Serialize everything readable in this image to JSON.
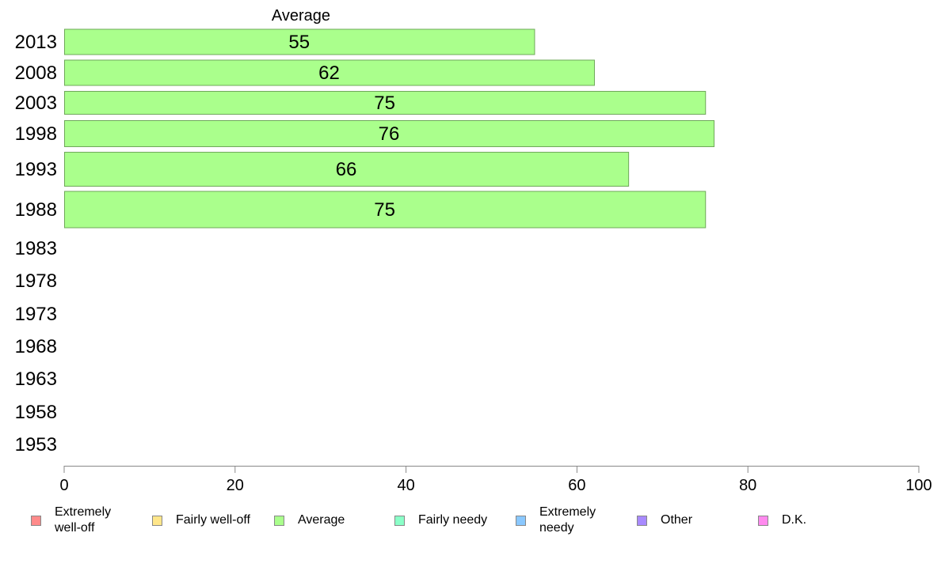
{
  "chart_data": {
    "type": "bar",
    "orientation": "horizontal",
    "title": "Average",
    "categories": [
      "2013",
      "2008",
      "2003",
      "1998",
      "1993",
      "1988",
      "1983",
      "1978",
      "1973",
      "1968",
      "1963",
      "1958",
      "1953"
    ],
    "series": [
      {
        "name": "Average",
        "values": [
          55,
          62,
          75,
          76,
          66,
          75,
          null,
          null,
          null,
          null,
          null,
          null,
          null
        ],
        "color": "#aaff8c"
      }
    ],
    "xlim": [
      0,
      100
    ],
    "xticks": [
      "0",
      "20",
      "40",
      "60",
      "80",
      "100"
    ],
    "grid": false,
    "legend_position": "bottom"
  },
  "legend": [
    {
      "label": "Extremely\nwell-off",
      "color": "#ff8a8a"
    },
    {
      "label": "Fairly well-off",
      "color": "#ffe68a"
    },
    {
      "label": "Average",
      "color": "#aaff8c"
    },
    {
      "label": "Fairly needy",
      "color": "#8affc8"
    },
    {
      "label": "Extremely\nneedy",
      "color": "#8ac8ff"
    },
    {
      "label": "Other",
      "color": "#a88aff"
    },
    {
      "label": "D.K.",
      "color": "#ff8aee"
    }
  ],
  "colors": {
    "bar_border": "#6fa85a",
    "axis": "#888888"
  }
}
